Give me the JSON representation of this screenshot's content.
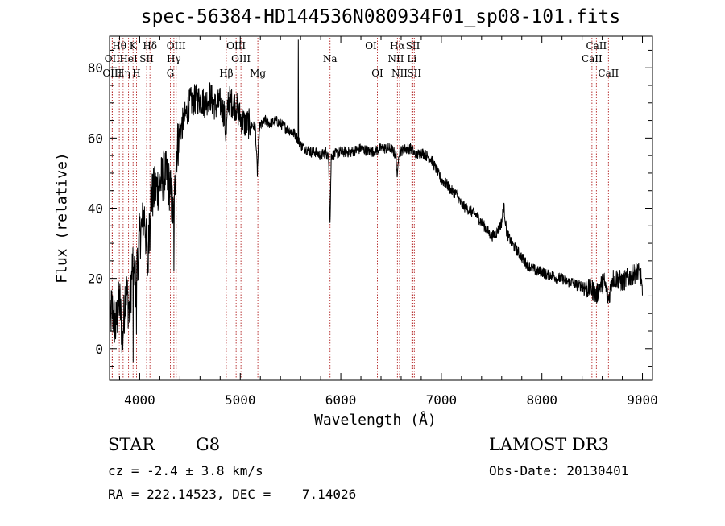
{
  "header": {
    "title": "spec-56384-HD144536N080934F01_sp08-101.fits"
  },
  "info": {
    "object_class": "STAR",
    "subclass": "G8",
    "survey": "LAMOST DR3",
    "cz_text": "cz = -2.4 ± 3.8 km/s",
    "obs_date_text": "Obs-Date: 20130401",
    "radec_text": "RA = 222.14523, DEC =    7.14026"
  },
  "colors": {
    "spectrum": "#000000",
    "line_markers": "#b22222"
  },
  "chart_data": {
    "type": "line",
    "title": "spec-56384-HD144536N080934F01_sp08-101.fits",
    "xlabel": "Wavelength (Å)",
    "ylabel": "Flux (relative)",
    "xlim": [
      3700,
      9100
    ],
    "ylim": [
      -9,
      89
    ],
    "x_ticks": [
      4000,
      5000,
      6000,
      7000,
      8000,
      9000
    ],
    "x_tick_labels": [
      "4000",
      "5000",
      "6000",
      "7000",
      "8000",
      "9000"
    ],
    "y_ticks": [
      0,
      20,
      40,
      60,
      80
    ],
    "y_tick_labels": [
      "0",
      "20",
      "40",
      "60",
      "80"
    ],
    "x_minor_step": 200,
    "y_minor_step": 5,
    "series": [
      {
        "name": "spectrum",
        "anchors": [
          [
            3700,
            3
          ],
          [
            3720,
            12
          ],
          [
            3760,
            6
          ],
          [
            3800,
            14
          ],
          [
            3830,
            2
          ],
          [
            3860,
            18
          ],
          [
            3900,
            10
          ],
          [
            3930,
            25
          ],
          [
            3960,
            18
          ],
          [
            4000,
            32
          ],
          [
            4050,
            38
          ],
          [
            4080,
            22
          ],
          [
            4100,
            42
          ],
          [
            4150,
            45
          ],
          [
            4200,
            47
          ],
          [
            4250,
            50
          ],
          [
            4300,
            46
          ],
          [
            4340,
            36
          ],
          [
            4360,
            55
          ],
          [
            4400,
            62
          ],
          [
            4450,
            66
          ],
          [
            4500,
            70
          ],
          [
            4550,
            71
          ],
          [
            4600,
            71
          ],
          [
            4650,
            70
          ],
          [
            4700,
            72
          ],
          [
            4750,
            69
          ],
          [
            4800,
            70
          ],
          [
            4840,
            67
          ],
          [
            4860,
            60
          ],
          [
            4880,
            71
          ],
          [
            4920,
            70
          ],
          [
            4960,
            69
          ],
          [
            5000,
            66
          ],
          [
            5050,
            64
          ],
          [
            5100,
            64
          ],
          [
            5150,
            63
          ],
          [
            5170,
            50
          ],
          [
            5190,
            63
          ],
          [
            5250,
            65
          ],
          [
            5300,
            64
          ],
          [
            5350,
            65
          ],
          [
            5400,
            64
          ],
          [
            5450,
            63
          ],
          [
            5500,
            62
          ],
          [
            5550,
            61
          ],
          [
            5600,
            58
          ],
          [
            5650,
            57
          ],
          [
            5700,
            56
          ],
          [
            5750,
            56
          ],
          [
            5800,
            55
          ],
          [
            5850,
            56
          ],
          [
            5880,
            54
          ],
          [
            5893,
            35
          ],
          [
            5905,
            55
          ],
          [
            6000,
            56
          ],
          [
            6100,
            56
          ],
          [
            6200,
            57
          ],
          [
            6300,
            56
          ],
          [
            6400,
            57
          ],
          [
            6500,
            57
          ],
          [
            6550,
            55
          ],
          [
            6563,
            48
          ],
          [
            6575,
            56
          ],
          [
            6650,
            57
          ],
          [
            6700,
            57
          ],
          [
            6750,
            55
          ],
          [
            6800,
            56
          ],
          [
            6850,
            55
          ],
          [
            6900,
            54
          ],
          [
            6950,
            51
          ],
          [
            7000,
            48
          ],
          [
            7050,
            47
          ],
          [
            7100,
            45
          ],
          [
            7150,
            44
          ],
          [
            7200,
            41
          ],
          [
            7250,
            40
          ],
          [
            7300,
            39
          ],
          [
            7350,
            38
          ],
          [
            7400,
            36
          ],
          [
            7450,
            34
          ],
          [
            7500,
            32
          ],
          [
            7550,
            33
          ],
          [
            7600,
            36
          ],
          [
            7620,
            41
          ],
          [
            7650,
            33
          ],
          [
            7700,
            30
          ],
          [
            7750,
            28
          ],
          [
            7800,
            26
          ],
          [
            7850,
            24
          ],
          [
            7900,
            23
          ],
          [
            7950,
            22
          ],
          [
            8000,
            22
          ],
          [
            8050,
            21
          ],
          [
            8100,
            21
          ],
          [
            8150,
            20
          ],
          [
            8200,
            20
          ],
          [
            8250,
            19
          ],
          [
            8300,
            19
          ],
          [
            8350,
            18
          ],
          [
            8400,
            18
          ],
          [
            8450,
            17
          ],
          [
            8500,
            17
          ],
          [
            8540,
            15
          ],
          [
            8580,
            18
          ],
          [
            8620,
            19
          ],
          [
            8662,
            14
          ],
          [
            8700,
            20
          ],
          [
            8750,
            20
          ],
          [
            8800,
            19
          ],
          [
            8850,
            20
          ],
          [
            8900,
            21
          ],
          [
            8950,
            22
          ],
          [
            8990,
            20
          ],
          [
            9000,
            14
          ]
        ],
        "spikes": [
          [
            5577,
            88
          ],
          [
            4102,
            28
          ],
          [
            4340,
            22
          ],
          [
            3934,
            -4
          ],
          [
            3968,
            4
          ]
        ]
      }
    ],
    "line_markers": [
      {
        "label": "Hθ",
        "x": 3797,
        "row": 1
      },
      {
        "label": "OII",
        "x": 3727,
        "row": 2
      },
      {
        "label": "OIII",
        "x": 3727,
        "row": 3
      },
      {
        "label": "Hη",
        "x": 3835,
        "row": 3
      },
      {
        "label": "HeI",
        "x": 3889,
        "row": 2
      },
      {
        "label": "K",
        "x": 3934,
        "row": 1
      },
      {
        "label": "H",
        "x": 3968,
        "row": 3
      },
      {
        "label": "SII",
        "x": 4069,
        "row": 2
      },
      {
        "label": "Hδ",
        "x": 4102,
        "row": 1
      },
      {
        "label": "OIII",
        "x": 4363,
        "row": 1
      },
      {
        "label": "Hγ",
        "x": 4340,
        "row": 2
      },
      {
        "label": "G",
        "x": 4305,
        "row": 3
      },
      {
        "label": "Hβ",
        "x": 4861,
        "row": 3
      },
      {
        "label": "OIII",
        "x": 4959,
        "row": 1
      },
      {
        "label": "OIII",
        "x": 5007,
        "row": 2
      },
      {
        "label": "Mg",
        "x": 5175,
        "row": 3
      },
      {
        "label": "Na",
        "x": 5893,
        "row": 2
      },
      {
        "label": "OI",
        "x": 6300,
        "row": 1
      },
      {
        "label": "OI",
        "x": 6364,
        "row": 3
      },
      {
        "label": "Hα",
        "x": 6563,
        "row": 1
      },
      {
        "label": "NII",
        "x": 6548,
        "row": 2
      },
      {
        "label": "NII",
        "x": 6584,
        "row": 3
      },
      {
        "label": "SII",
        "x": 6717,
        "row": 1
      },
      {
        "label": "Li",
        "x": 6707,
        "row": 2
      },
      {
        "label": "SII",
        "x": 6731,
        "row": 3
      },
      {
        "label": "CaII",
        "x": 8542,
        "row": 1
      },
      {
        "label": "CaII",
        "x": 8498,
        "row": 2
      },
      {
        "label": "CaII",
        "x": 8662,
        "row": 3
      }
    ]
  }
}
